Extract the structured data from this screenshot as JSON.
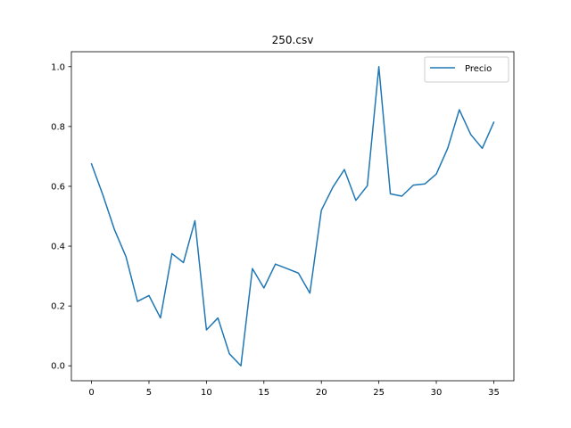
{
  "chart_data": {
    "type": "line",
    "title": "250.csv",
    "xlabel": "",
    "ylabel": "",
    "xlim": [
      -1.75,
      36.75
    ],
    "ylim": [
      -0.05,
      1.05
    ],
    "x_ticks": [
      0,
      5,
      10,
      15,
      20,
      25,
      30,
      35
    ],
    "y_ticks": [
      0.0,
      0.2,
      0.4,
      0.6,
      0.8,
      1.0
    ],
    "x_tick_labels": [
      "0",
      "5",
      "10",
      "15",
      "20",
      "25",
      "30",
      "35"
    ],
    "y_tick_labels": [
      "0.0",
      "0.2",
      "0.4",
      "0.6",
      "0.8",
      "1.0"
    ],
    "grid": false,
    "legend_position": "top-right",
    "series": [
      {
        "name": "Precio",
        "color": "#1f77b4",
        "x": [
          0,
          1,
          2,
          3,
          4,
          5,
          6,
          7,
          8,
          9,
          10,
          11,
          12,
          13,
          14,
          15,
          16,
          17,
          18,
          19,
          20,
          21,
          22,
          23,
          24,
          25,
          26,
          27,
          28,
          29,
          30,
          31,
          32,
          33,
          34,
          35
        ],
        "values": [
          0.675,
          0.57,
          0.455,
          0.365,
          0.215,
          0.235,
          0.16,
          0.375,
          0.345,
          0.485,
          0.12,
          0.16,
          0.04,
          0.0,
          0.325,
          0.26,
          0.34,
          0.325,
          0.31,
          0.243,
          0.52,
          0.597,
          0.656,
          0.553,
          0.602,
          1.0,
          0.575,
          0.567,
          0.604,
          0.608,
          0.641,
          0.728,
          0.856,
          0.773,
          0.727,
          0.814
        ]
      }
    ]
  }
}
